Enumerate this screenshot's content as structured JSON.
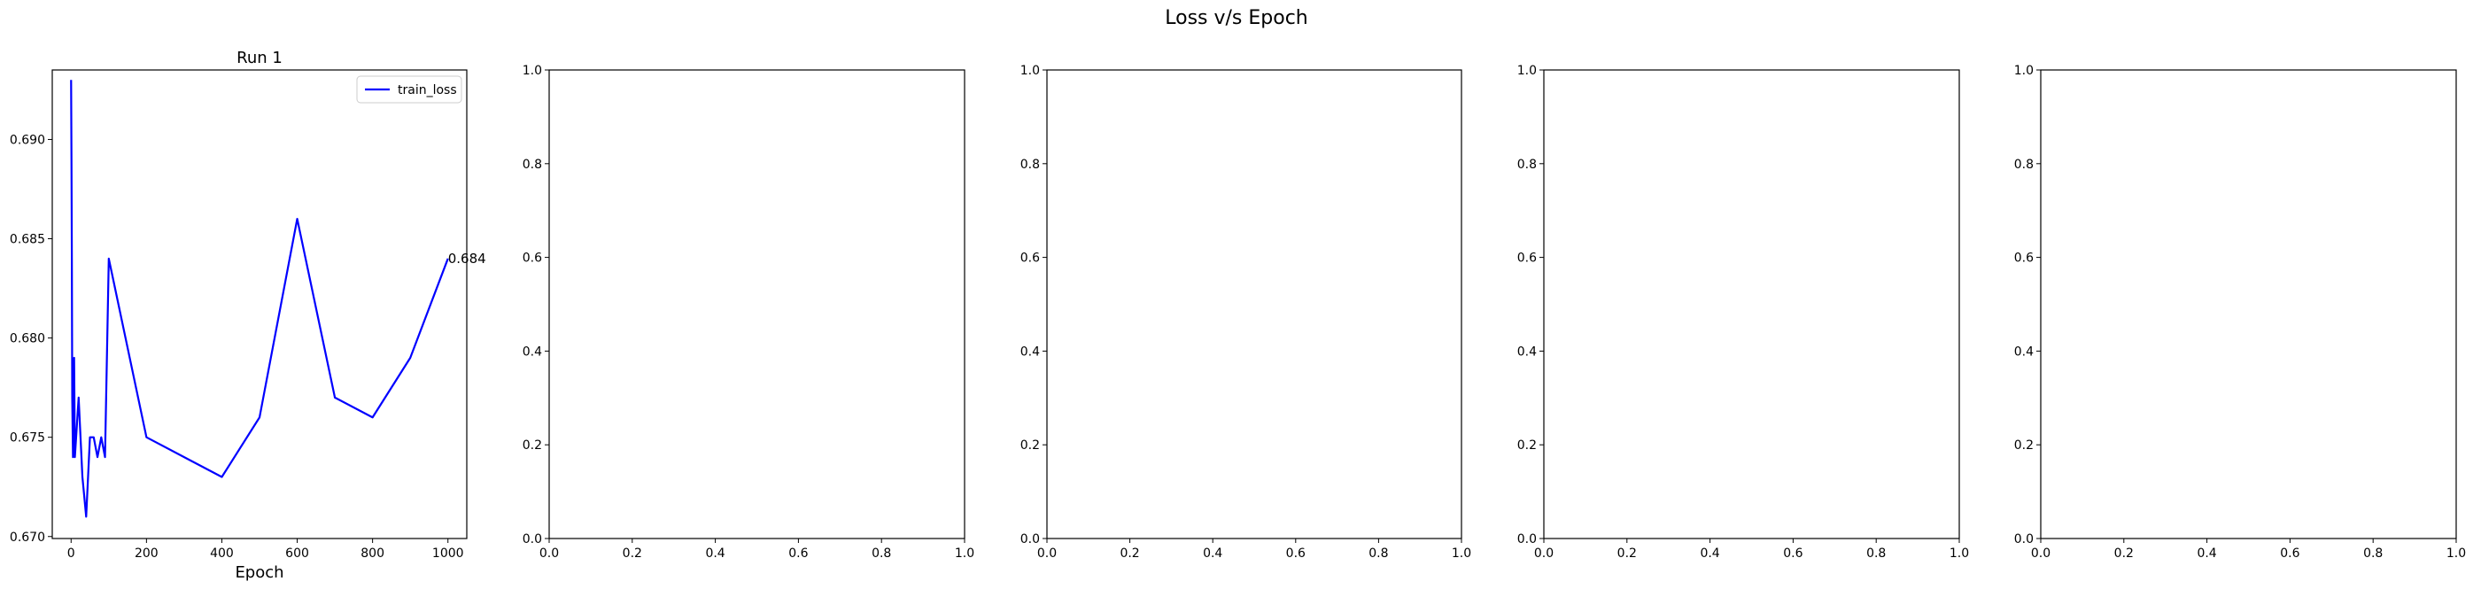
{
  "figure": {
    "suptitle": "Loss v/s Epoch"
  },
  "chart_data": [
    {
      "type": "line",
      "title": "Run 1",
      "xlabel": "Epoch",
      "ylabel": "",
      "xlim": [
        -50,
        1050
      ],
      "ylim": [
        0.6699,
        0.6935
      ],
      "xticks": [
        0,
        200,
        400,
        600,
        800,
        1000
      ],
      "xtick_labels": [
        "0",
        "200",
        "400",
        "600",
        "800",
        "1000"
      ],
      "yticks": [
        0.67,
        0.675,
        0.68,
        0.685,
        0.69
      ],
      "ytick_labels": [
        "0.670",
        "0.675",
        "0.680",
        "0.685",
        "0.690"
      ],
      "legend": {
        "placement": "upper-right",
        "entries": [
          "train_loss"
        ]
      },
      "grid": false,
      "series": [
        {
          "name": "train_loss",
          "color": "#0000ff",
          "x": [
            0,
            1,
            2,
            3,
            5,
            8,
            10,
            20,
            30,
            40,
            50,
            60,
            70,
            80,
            90,
            100,
            200,
            300,
            400,
            500,
            600,
            700,
            800,
            900,
            1000
          ],
          "y": [
            0.693,
            0.689,
            0.684,
            0.677,
            0.674,
            0.679,
            0.674,
            0.677,
            0.673,
            0.671,
            0.675,
            0.675,
            0.674,
            0.675,
            0.674,
            0.684,
            0.675,
            0.674,
            0.673,
            0.676,
            0.686,
            0.677,
            0.676,
            0.679,
            0.684
          ]
        }
      ],
      "annotations": [
        {
          "text": "0.684",
          "x": 1000,
          "y": 0.684
        }
      ]
    },
    {
      "type": "line",
      "title": "",
      "xlabel": "",
      "xlim": [
        0,
        1
      ],
      "ylim": [
        0,
        1
      ],
      "xticks": [
        0,
        0.2,
        0.4,
        0.6,
        0.8,
        1.0
      ],
      "xtick_labels": [
        "0.0",
        "0.2",
        "0.4",
        "0.6",
        "0.8",
        "1.0"
      ],
      "yticks": [
        0,
        0.2,
        0.4,
        0.6,
        0.8,
        1.0
      ],
      "ytick_labels": [
        "0.0",
        "0.2",
        "0.4",
        "0.6",
        "0.8",
        "1.0"
      ],
      "series": []
    },
    {
      "type": "line",
      "title": "",
      "xlabel": "",
      "xlim": [
        0,
        1
      ],
      "ylim": [
        0,
        1
      ],
      "xticks": [
        0,
        0.2,
        0.4,
        0.6,
        0.8,
        1.0
      ],
      "xtick_labels": [
        "0.0",
        "0.2",
        "0.4",
        "0.6",
        "0.8",
        "1.0"
      ],
      "yticks": [
        0,
        0.2,
        0.4,
        0.6,
        0.8,
        1.0
      ],
      "ytick_labels": [
        "0.0",
        "0.2",
        "0.4",
        "0.6",
        "0.8",
        "1.0"
      ],
      "series": []
    },
    {
      "type": "line",
      "title": "",
      "xlabel": "",
      "xlim": [
        0,
        1
      ],
      "ylim": [
        0,
        1
      ],
      "xticks": [
        0,
        0.2,
        0.4,
        0.6,
        0.8,
        1.0
      ],
      "xtick_labels": [
        "0.0",
        "0.2",
        "0.4",
        "0.6",
        "0.8",
        "1.0"
      ],
      "yticks": [
        0,
        0.2,
        0.4,
        0.6,
        0.8,
        1.0
      ],
      "ytick_labels": [
        "0.0",
        "0.2",
        "0.4",
        "0.6",
        "0.8",
        "1.0"
      ],
      "series": []
    },
    {
      "type": "line",
      "title": "",
      "xlabel": "",
      "xlim": [
        0,
        1
      ],
      "ylim": [
        0,
        1
      ],
      "xticks": [
        0,
        0.2,
        0.4,
        0.6,
        0.8,
        1.0
      ],
      "xtick_labels": [
        "0.0",
        "0.2",
        "0.4",
        "0.6",
        "0.8",
        "1.0"
      ],
      "yticks": [
        0,
        0.2,
        0.4,
        0.6,
        0.8,
        1.0
      ],
      "ytick_labels": [
        "0.0",
        "0.2",
        "0.4",
        "0.6",
        "0.8",
        "1.0"
      ],
      "series": []
    }
  ]
}
